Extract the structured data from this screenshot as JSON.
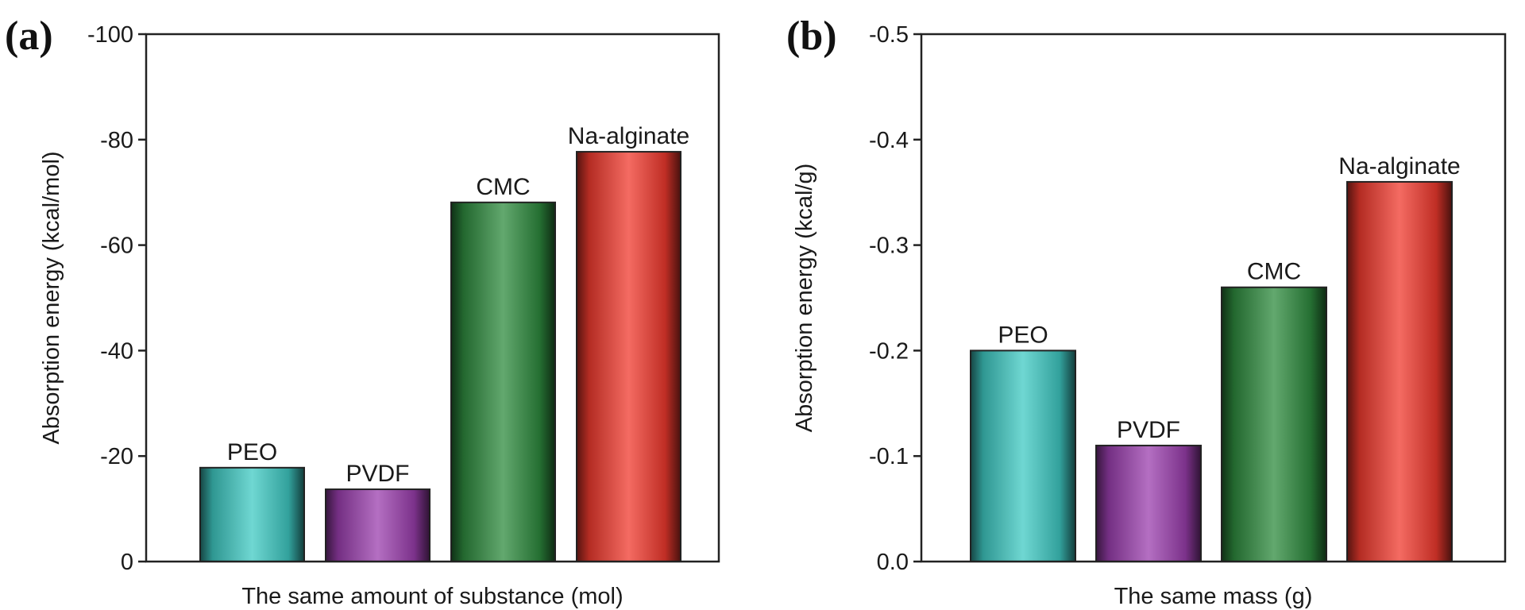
{
  "chart_data": [
    {
      "panel": "(a)",
      "type": "bar",
      "categories": [
        "PEO",
        "PVDF",
        "CMC",
        "Na-alginate"
      ],
      "values": [
        -17.8,
        -13.7,
        -68.1,
        -77.7
      ],
      "xlabel": "The same amount of substance (mol)",
      "ylabel": "Absorption energy (kcal/mol)",
      "ylim": [
        0,
        -100
      ],
      "yticks": [
        0,
        -20,
        -40,
        -60,
        -80,
        -100
      ],
      "ytick_labels": [
        "0",
        "-20",
        "-40",
        "-60",
        "-80",
        "-100"
      ],
      "colors": [
        "#3fc9c3",
        "#9b3fae",
        "#2e8b3e",
        "#f03a2e"
      ],
      "grid": false,
      "legend": "none"
    },
    {
      "panel": "(b)",
      "type": "bar",
      "categories": [
        "PEO",
        "PVDF",
        "CMC",
        "Na-alginate"
      ],
      "values": [
        -0.2,
        -0.11,
        -0.26,
        -0.36
      ],
      "xlabel": "The same mass (g)",
      "ylabel": "Absorption energy (kcal/g)",
      "ylim": [
        0,
        -0.5
      ],
      "yticks": [
        0,
        -0.1,
        -0.2,
        -0.3,
        -0.4,
        -0.5
      ],
      "ytick_labels": [
        "0.0",
        "-0.1",
        "-0.2",
        "-0.3",
        "-0.4",
        "-0.5"
      ],
      "colors": [
        "#3fc9c3",
        "#9b3fae",
        "#2e8b3e",
        "#f03a2e"
      ],
      "grid": false,
      "legend": "none"
    }
  ]
}
